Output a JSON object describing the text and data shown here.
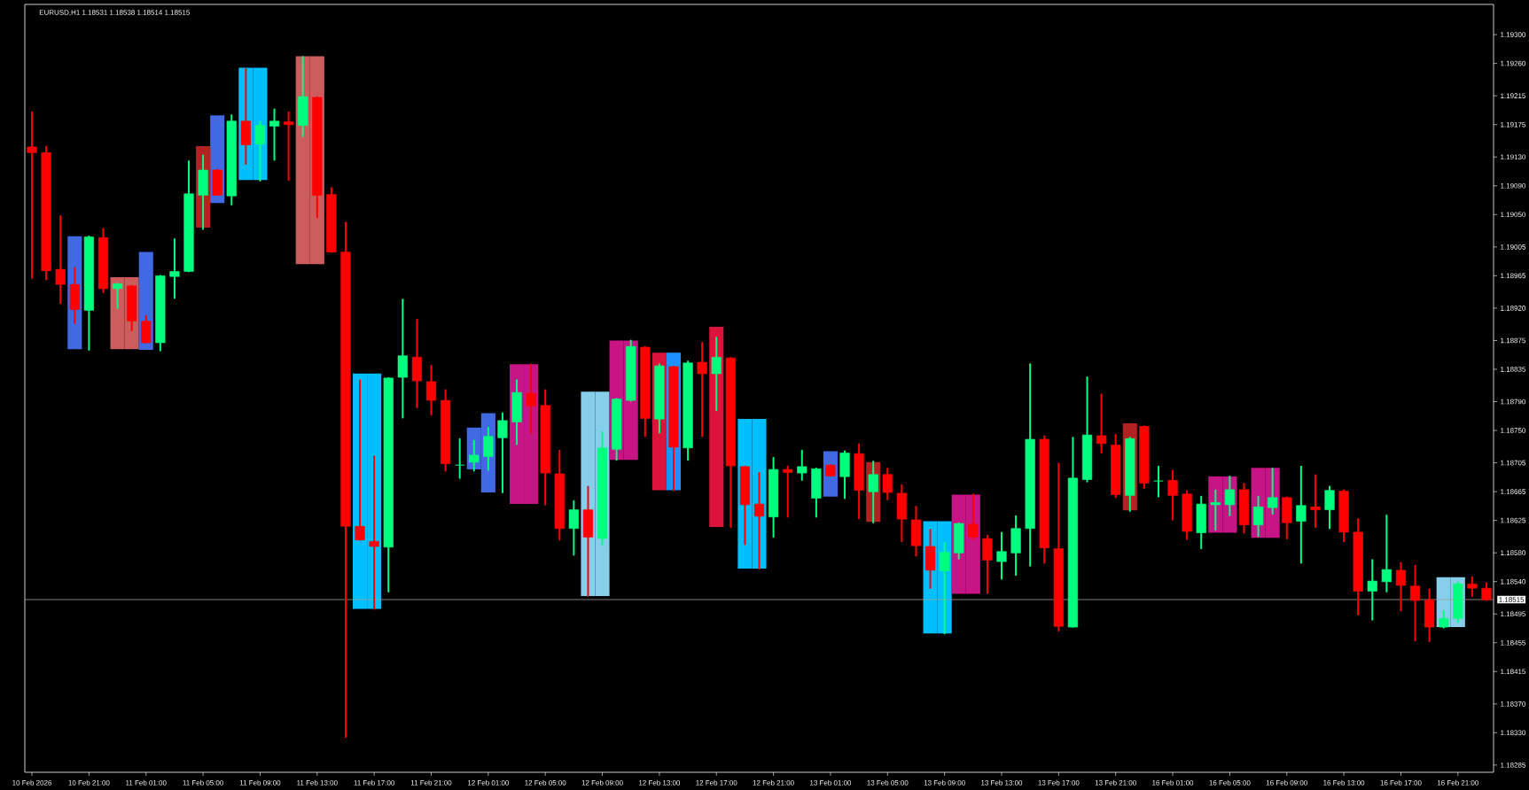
{
  "chart_data": {
    "type": "candlestick",
    "title": "EURUSD,H1  1.18531 1.18538 1.18514 1.18515",
    "categories": [
      "10 Feb 2026",
      null,
      null,
      null,
      "10 Feb 21:00",
      null,
      null,
      null,
      "11 Feb 01:00",
      null,
      null,
      null,
      "11 Feb 05:00",
      null,
      null,
      null,
      "11 Feb 09:00",
      null,
      null,
      null,
      "11 Feb 13:00",
      null,
      null,
      null,
      "11 Feb 17:00",
      null,
      null,
      null,
      "11 Feb 21:00",
      null,
      null,
      null,
      "12 Feb 01:00",
      null,
      null,
      null,
      "12 Feb 05:00",
      null,
      null,
      null,
      "12 Feb 09:00",
      null,
      null,
      null,
      "12 Feb 13:00",
      null,
      null,
      null,
      "12 Feb 17:00",
      null,
      null,
      null,
      "12 Feb 21:00",
      null,
      null,
      null,
      "13 Feb 01:00",
      null,
      null,
      null,
      "13 Feb 05:00",
      null,
      null,
      null,
      "13 Feb 09:00",
      null,
      null,
      null,
      "13 Feb 13:00",
      null,
      null,
      null,
      "13 Feb 17:00",
      null,
      null,
      null,
      "13 Feb 21:00",
      null,
      null,
      null,
      "16 Feb 01:00",
      null,
      null,
      null,
      "16 Feb 05:00",
      null,
      null,
      null,
      "16 Feb 09:00",
      null,
      null,
      null,
      "16 Feb 13:00",
      null,
      null,
      null,
      "16 Feb 17:00",
      null,
      null,
      null,
      "16 Feb 21:00",
      null,
      null
    ],
    "ohlc": [
      [
        1.19144,
        1.19192,
        1.18962,
        1.19136
      ],
      [
        1.19136,
        1.19144,
        1.1896,
        1.18972
      ],
      [
        1.18974,
        1.19048,
        1.18927,
        1.18953
      ],
      [
        1.18953,
        1.18976,
        1.18899,
        1.18918
      ],
      [
        1.18917,
        1.1902,
        1.18862,
        1.19019
      ],
      [
        1.19018,
        1.1903,
        1.18942,
        1.18947
      ],
      [
        1.18947,
        1.18954,
        1.1892,
        1.18954
      ],
      [
        1.18951,
        1.18951,
        1.18889,
        1.18902
      ],
      [
        1.18902,
        1.18909,
        1.18872,
        1.18872
      ],
      [
        1.18872,
        1.18965,
        1.18861,
        1.18965
      ],
      [
        1.18964,
        1.19016,
        1.18934,
        1.18971
      ],
      [
        1.18971,
        1.19124,
        1.18971,
        1.19079
      ],
      [
        1.19077,
        1.19132,
        1.1903,
        1.19112
      ],
      [
        1.19112,
        1.19112,
        1.19077,
        1.19077
      ],
      [
        1.19076,
        1.19188,
        1.19064,
        1.1918
      ],
      [
        1.1918,
        1.19252,
        1.1912,
        1.19147
      ],
      [
        1.19148,
        1.19179,
        1.19097,
        1.19174
      ],
      [
        1.19173,
        1.19196,
        1.19126,
        1.1918
      ],
      [
        1.19179,
        1.19192,
        1.19098,
        1.19175
      ],
      [
        1.19174,
        1.19269,
        1.19159,
        1.19214
      ],
      [
        1.19213,
        1.19213,
        1.19046,
        1.19077
      ],
      [
        1.19078,
        1.19087,
        1.18998,
        1.18998
      ],
      [
        1.18998,
        1.19039,
        1.18324,
        1.18617
      ],
      [
        1.18617,
        1.1882,
        1.18598,
        1.18598
      ],
      [
        1.18596,
        1.18714,
        1.18502,
        1.18589
      ],
      [
        1.18588,
        1.18823,
        1.18526,
        1.18823
      ],
      [
        1.18824,
        1.18932,
        1.18768,
        1.18854
      ],
      [
        1.18852,
        1.18904,
        1.18782,
        1.18819
      ],
      [
        1.18818,
        1.1884,
        1.18772,
        1.18792
      ],
      [
        1.18792,
        1.18806,
        1.18694,
        1.18704
      ],
      [
        1.18702,
        1.18738,
        1.18684,
        1.18702
      ],
      [
        1.18706,
        1.18736,
        1.18694,
        1.18716
      ],
      [
        1.18714,
        1.18754,
        1.18695,
        1.18742
      ],
      [
        1.1874,
        1.18774,
        1.18664,
        1.18764
      ],
      [
        1.18762,
        1.1882,
        1.18731,
        1.18803
      ],
      [
        1.18802,
        1.18842,
        1.18746,
        1.18784
      ],
      [
        1.18785,
        1.18806,
        1.18647,
        1.18691
      ],
      [
        1.1869,
        1.18722,
        1.18598,
        1.18614
      ],
      [
        1.18614,
        1.18652,
        1.18577,
        1.1864
      ],
      [
        1.1864,
        1.18672,
        1.1852,
        1.18602
      ],
      [
        1.186,
        1.18748,
        1.18591,
        1.18726
      ],
      [
        1.18724,
        1.18794,
        1.18709,
        1.18794
      ],
      [
        1.18792,
        1.18875,
        1.18791,
        1.18867
      ],
      [
        1.18866,
        1.18866,
        1.18742,
        1.18767
      ],
      [
        1.18766,
        1.18842,
        1.18747,
        1.1884
      ],
      [
        1.18839,
        1.18839,
        1.18667,
        1.18727
      ],
      [
        1.18726,
        1.18846,
        1.18709,
        1.18844
      ],
      [
        1.18845,
        1.18872,
        1.18742,
        1.18829
      ],
      [
        1.18829,
        1.18879,
        1.18778,
        1.18852
      ],
      [
        1.18851,
        1.18851,
        1.18616,
        1.18701
      ],
      [
        1.187,
        1.187,
        1.18592,
        1.18647
      ],
      [
        1.18648,
        1.18691,
        1.18558,
        1.18631
      ],
      [
        1.1863,
        1.18712,
        1.18602,
        1.18696
      ],
      [
        1.18696,
        1.187,
        1.1863,
        1.18692
      ],
      [
        1.18691,
        1.18722,
        1.18681,
        1.187
      ],
      [
        1.18656,
        1.18697,
        1.1863,
        1.18697
      ],
      [
        1.18702,
        1.18702,
        1.18687,
        1.18687
      ],
      [
        1.18686,
        1.18721,
        1.18656,
        1.18719
      ],
      [
        1.18718,
        1.18731,
        1.18628,
        1.18667
      ],
      [
        1.18665,
        1.18707,
        1.18622,
        1.18689
      ],
      [
        1.18689,
        1.18697,
        1.18654,
        1.18664
      ],
      [
        1.18663,
        1.18674,
        1.18596,
        1.18627
      ],
      [
        1.18626,
        1.18644,
        1.18576,
        1.1859
      ],
      [
        1.18589,
        1.18612,
        1.18531,
        1.18556
      ],
      [
        1.18555,
        1.18594,
        1.18468,
        1.18581
      ],
      [
        1.1858,
        1.18621,
        1.18572,
        1.18621
      ],
      [
        1.1862,
        1.18661,
        1.18599,
        1.18602
      ],
      [
        1.186,
        1.18604,
        1.18524,
        1.1857
      ],
      [
        1.18568,
        1.18608,
        1.18544,
        1.18582
      ],
      [
        1.1858,
        1.18631,
        1.18549,
        1.18614
      ],
      [
        1.18614,
        1.18842,
        1.18562,
        1.18738
      ],
      [
        1.18738,
        1.18742,
        1.18566,
        1.18587
      ],
      [
        1.18586,
        1.18704,
        1.18472,
        1.18478
      ],
      [
        1.18477,
        1.1874,
        1.18477,
        1.18684
      ],
      [
        1.18682,
        1.18824,
        1.18679,
        1.18744
      ],
      [
        1.18743,
        1.188,
        1.18719,
        1.18732
      ],
      [
        1.1873,
        1.18744,
        1.18657,
        1.18661
      ],
      [
        1.1866,
        1.1874,
        1.18638,
        1.18739
      ],
      [
        1.18756,
        1.18756,
        1.1867,
        1.18677
      ],
      [
        1.1868,
        1.187,
        1.18658,
        1.1868
      ],
      [
        1.18681,
        1.18694,
        1.18626,
        1.1866
      ],
      [
        1.18662,
        1.18666,
        1.18599,
        1.1861
      ],
      [
        1.18608,
        1.18658,
        1.18586,
        1.18648
      ],
      [
        1.18647,
        1.18667,
        1.18612,
        1.1865
      ],
      [
        1.18647,
        1.18686,
        1.18632,
        1.18668
      ],
      [
        1.18668,
        1.18676,
        1.18608,
        1.18619
      ],
      [
        1.18619,
        1.18658,
        1.18603,
        1.18644
      ],
      [
        1.18643,
        1.18697,
        1.18634,
        1.18657
      ],
      [
        1.18657,
        1.18657,
        1.186,
        1.18622
      ],
      [
        1.18624,
        1.187,
        1.18566,
        1.18646
      ],
      [
        1.18644,
        1.18688,
        1.18616,
        1.1864
      ],
      [
        1.1864,
        1.18672,
        1.18614,
        1.18667
      ],
      [
        1.18666,
        1.18667,
        1.18596,
        1.18609
      ],
      [
        1.18609,
        1.18627,
        1.18494,
        1.18527
      ],
      [
        1.18527,
        1.1857,
        1.18487,
        1.18541
      ],
      [
        1.1854,
        1.18632,
        1.18526,
        1.18557
      ],
      [
        1.18556,
        1.18566,
        1.185,
        1.18535
      ],
      [
        1.18534,
        1.18562,
        1.18458,
        1.18514
      ],
      [
        1.18515,
        1.18529,
        1.18457,
        1.18477
      ],
      [
        1.18477,
        1.18499,
        1.18476,
        1.18489
      ],
      [
        1.18489,
        1.18539,
        1.18484,
        1.18537
      ],
      [
        1.18537,
        1.18546,
        1.1852,
        1.18531
      ],
      [
        1.18531,
        1.18538,
        1.18514,
        1.18515
      ]
    ],
    "colors": [
      "#ff0000",
      "#ff0000",
      "#ff0000",
      "#ff0000",
      "#00ff7f",
      "#ff0000",
      "#00ff7f",
      "#ff0000",
      "#ff0000",
      "#00ff7f",
      "#00ff7f",
      "#00ff7f",
      "#00ff7f",
      "#ff0000",
      "#00ff7f",
      "#ff0000",
      "#00ff7f",
      "#00ff7f",
      "#ff0000",
      "#00ff7f",
      "#ff0000",
      "#ff0000",
      "#ff0000",
      "#ff0000",
      "#ff0000",
      "#00ff7f",
      "#00ff7f",
      "#ff0000",
      "#ff0000",
      "#ff0000",
      "#00ff7f",
      "#00ff7f",
      "#00ff7f",
      "#00ff7f",
      "#00ff7f",
      "#ff0000",
      "#ff0000",
      "#ff0000",
      "#00ff7f",
      "#ff0000",
      "#00ff7f",
      "#00ff7f",
      "#00ff7f",
      "#ff0000",
      "#00ff7f",
      "#ff0000",
      "#00ff7f",
      "#ff0000",
      "#00ff7f",
      "#ff0000",
      "#ff0000",
      "#ff0000",
      "#00ff7f",
      "#ff0000",
      "#00ff7f",
      "#00ff7f",
      "#ff0000",
      "#00ff7f",
      "#ff0000",
      "#00ff7f",
      "#ff0000",
      "#ff0000",
      "#ff0000",
      "#ff0000",
      "#00ff7f",
      "#00ff7f",
      "#ff0000",
      "#ff0000",
      "#00ff7f",
      "#00ff7f",
      "#00ff7f",
      "#ff0000",
      "#ff0000",
      "#00ff7f",
      "#00ff7f",
      "#ff0000",
      "#ff0000",
      "#00ff7f",
      "#ff0000",
      "#00ff7f",
      "#ff0000",
      "#ff0000",
      "#00ff7f",
      "#00ff7f",
      "#00ff7f",
      "#ff0000",
      "#00ff7f",
      "#00ff7f",
      "#ff0000",
      "#00ff7f",
      "#ff0000",
      "#00ff7f",
      "#ff0000",
      "#ff0000",
      "#00ff7f",
      "#00ff7f",
      "#ff0000",
      "#ff0000",
      "#ff0000",
      "#00ff7f",
      "#00ff7f",
      "#ff0000",
      "#ff0000"
    ],
    "series": [
      {
        "type": "bar",
        "base": [
          null,
          null,
          null,
          1.18863,
          null,
          null,
          1.18863,
          1.18863,
          1.18862,
          null,
          null,
          null,
          1.19032,
          1.19066,
          null,
          1.19098,
          1.19098,
          null,
          null,
          1.18981,
          1.18981,
          null,
          null,
          1.18502,
          1.18502,
          null,
          null,
          null,
          null,
          null,
          null,
          1.18696,
          1.18664,
          null,
          1.18648,
          1.18648,
          null,
          null,
          null,
          1.1852,
          1.1852,
          1.18709,
          1.18709,
          null,
          1.18667,
          1.18667,
          null,
          null,
          1.18616,
          null,
          1.18558,
          1.18558,
          null,
          null,
          null,
          null,
          1.18658,
          null,
          null,
          1.18623,
          null,
          null,
          null,
          1.18468,
          1.18468,
          1.18523,
          1.18523,
          null,
          null,
          null,
          null,
          null,
          null,
          null,
          null,
          null,
          null,
          1.18639,
          null,
          null,
          null,
          null,
          null,
          1.18608,
          1.18608,
          null,
          1.18601,
          1.18601,
          null,
          null,
          null,
          null,
          null,
          null,
          null,
          null,
          null,
          null,
          null,
          1.18477,
          1.18477,
          null,
          null
        ],
        "values": [
          null,
          null,
          null,
          0.00157,
          null,
          null,
          0.001,
          0.001,
          0.00136,
          null,
          null,
          null,
          0.00113,
          0.00122,
          null,
          0.00156,
          0.00156,
          null,
          null,
          0.00289,
          0.00289,
          null,
          null,
          0.00327,
          0.00327,
          null,
          null,
          null,
          null,
          null,
          null,
          0.00058,
          0.0011,
          null,
          0.00194,
          0.00194,
          null,
          null,
          null,
          0.00284,
          0.00284,
          0.00166,
          0.00166,
          null,
          0.00191,
          0.00191,
          null,
          null,
          0.00278,
          null,
          0.00208,
          0.00208,
          null,
          null,
          null,
          null,
          0.00063,
          null,
          null,
          0.00083,
          null,
          null,
          null,
          0.00156,
          0.00156,
          0.00138,
          0.00138,
          null,
          null,
          null,
          null,
          null,
          null,
          null,
          null,
          null,
          null,
          0.00121,
          null,
          null,
          null,
          null,
          null,
          0.00078,
          0.00078,
          null,
          0.00097,
          0.00097,
          null,
          null,
          null,
          null,
          null,
          null,
          null,
          null,
          null,
          null,
          null,
          0.00069,
          0.00069,
          null,
          null
        ],
        "colors": [
          null,
          null,
          null,
          "#4169e1",
          null,
          null,
          "#cd5c5c",
          "#cd5c5c",
          "#4169e1",
          null,
          null,
          null,
          "#b22222",
          "#4169e1",
          null,
          "#00bfff",
          "#00bfff",
          null,
          null,
          "#cd5c5c",
          "#cd5c5c",
          null,
          null,
          "#00bfff",
          "#00bfff",
          null,
          null,
          null,
          null,
          null,
          null,
          "#4169e1",
          "#4169e1",
          null,
          "#c71585",
          "#c71585",
          null,
          null,
          null,
          "#87ceeb",
          "#87ceeb",
          "#c71585",
          "#c71585",
          null,
          "#dc143c",
          "#1e90ff",
          null,
          null,
          "#dc143c",
          null,
          "#00bfff",
          "#00bfff",
          null,
          null,
          null,
          null,
          "#4169e1",
          null,
          null,
          "#b22222",
          null,
          null,
          null,
          "#00bfff",
          "#00bfff",
          "#c71585",
          "#c71585",
          null,
          null,
          null,
          null,
          null,
          null,
          null,
          null,
          null,
          null,
          "#b22222",
          null,
          null,
          null,
          null,
          null,
          "#c71585",
          "#c71585",
          null,
          "#c71585",
          "#c71585",
          null,
          null,
          null,
          null,
          null,
          null,
          null,
          null,
          null,
          null,
          null,
          "#87ceeb",
          "#87ceeb",
          null,
          null
        ]
      }
    ],
    "ylim": [
      1.18275,
      1.19342
    ],
    "yticks": [
      {
        "value": 1.193,
        "label": "1.19300"
      },
      {
        "value": 1.1926,
        "label": "1.19260"
      },
      {
        "value": 1.19215,
        "label": "1.19215"
      },
      {
        "value": 1.19175,
        "label": "1.19175"
      },
      {
        "value": 1.1913,
        "label": "1.19130"
      },
      {
        "value": 1.1909,
        "label": "1.19090"
      },
      {
        "value": 1.1905,
        "label": "1.19050"
      },
      {
        "value": 1.19005,
        "label": "1.19005"
      },
      {
        "value": 1.18965,
        "label": "1.18965"
      },
      {
        "value": 1.1892,
        "label": "1.18920"
      },
      {
        "value": 1.18875,
        "label": "1.18875"
      },
      {
        "value": 1.18835,
        "label": "1.18835"
      },
      {
        "value": 1.1879,
        "label": "1.18790"
      },
      {
        "value": 1.1875,
        "label": "1.18750"
      },
      {
        "value": 1.18705,
        "label": "1.18705"
      },
      {
        "value": 1.18665,
        "label": "1.18665"
      },
      {
        "value": 1.18625,
        "label": "1.18625"
      },
      {
        "value": 1.1858,
        "label": "1.18580"
      },
      {
        "value": 1.1854,
        "label": "1.18540"
      },
      {
        "value": 1.18495,
        "label": "1.18495"
      },
      {
        "value": 1.18455,
        "label": "1.18455"
      },
      {
        "value": 1.18415,
        "label": "1.18415"
      },
      {
        "value": 1.1837,
        "label": "1.18370"
      },
      {
        "value": 1.1833,
        "label": "1.18330"
      },
      {
        "value": 1.18285,
        "label": "1.18285"
      }
    ],
    "ref_lines": [
      {
        "axis": "y",
        "value": 1.18515,
        "label": "1.18515",
        "color": "#a0a0a0"
      }
    ]
  }
}
